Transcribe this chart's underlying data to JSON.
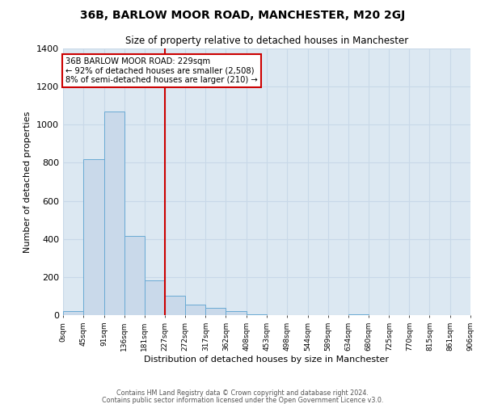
{
  "title": "36B, BARLOW MOOR ROAD, MANCHESTER, M20 2GJ",
  "subtitle": "Size of property relative to detached houses in Manchester",
  "xlabel": "Distribution of detached houses by size in Manchester",
  "ylabel": "Number of detached properties",
  "bar_values": [
    22,
    820,
    1070,
    415,
    182,
    103,
    55,
    38,
    20,
    5,
    0,
    0,
    0,
    0,
    5,
    0,
    0,
    0,
    0,
    0
  ],
  "bin_edges": [
    0,
    45,
    91,
    136,
    181,
    227,
    272,
    317,
    362,
    408,
    453,
    498,
    544,
    589,
    634,
    680,
    725,
    770,
    815,
    861,
    906
  ],
  "bar_color": "#c9d9ea",
  "bar_edgecolor": "#6aaad4",
  "vline_x": 227,
  "vline_color": "#cc0000",
  "annotation_text": "36B BARLOW MOOR ROAD: 229sqm\n← 92% of detached houses are smaller (2,508)\n8% of semi-detached houses are larger (210) →",
  "annotation_box_edgecolor": "#cc0000",
  "annotation_box_facecolor": "#ffffff",
  "ylim": [
    0,
    1400
  ],
  "yticks": [
    0,
    200,
    400,
    600,
    800,
    1000,
    1200,
    1400
  ],
  "xtick_labels": [
    "0sqm",
    "45sqm",
    "91sqm",
    "136sqm",
    "181sqm",
    "227sqm",
    "272sqm",
    "317sqm",
    "362sqm",
    "408sqm",
    "453sqm",
    "498sqm",
    "544sqm",
    "589sqm",
    "634sqm",
    "680sqm",
    "725sqm",
    "770sqm",
    "815sqm",
    "861sqm",
    "906sqm"
  ],
  "grid_color": "#c8d8e8",
  "plot_bg_color": "#dce8f2",
  "fig_bg_color": "#ffffff",
  "footer_line1": "Contains HM Land Registry data © Crown copyright and database right 2024.",
  "footer_line2": "Contains public sector information licensed under the Open Government Licence v3.0."
}
